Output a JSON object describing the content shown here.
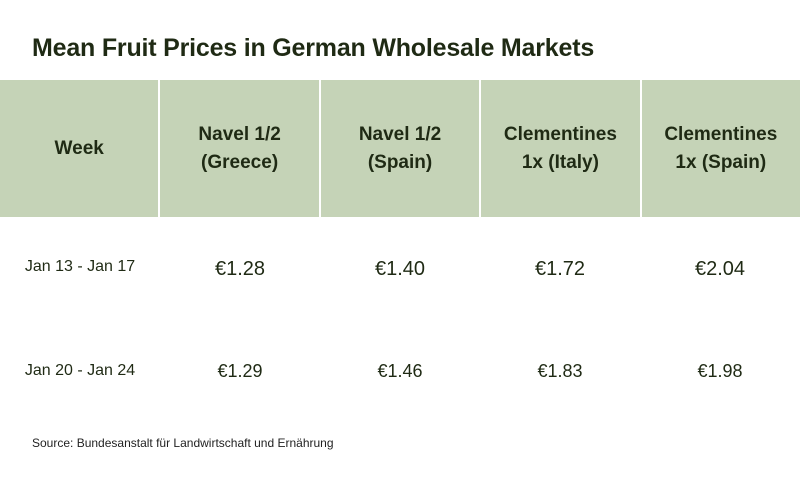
{
  "title": "Mean Fruit Prices in German Wholesale Markets",
  "source": "Source: Bundesanstalt für Landwirtschaft und Ernährung",
  "colors": {
    "header_bg": "#c5d3b7",
    "text": "#1f2a14"
  },
  "chart_data": {
    "type": "table",
    "title": "Mean Fruit Prices in German Wholesale Markets",
    "columns": [
      "Week",
      "Navel 1/2\n(Greece)",
      "Navel 1/2\n(Spain)",
      "Clementines\n1x (Italy)",
      "Clementines\n1x (Spain)"
    ],
    "rows": [
      [
        "Jan 13 - Jan 17",
        "€1.28",
        "€1.40",
        "€1.72",
        "€2.04"
      ],
      [
        "Jan 20 - Jan 24",
        "€1.29",
        "€1.46",
        "€1.83",
        "€1.98"
      ]
    ]
  }
}
